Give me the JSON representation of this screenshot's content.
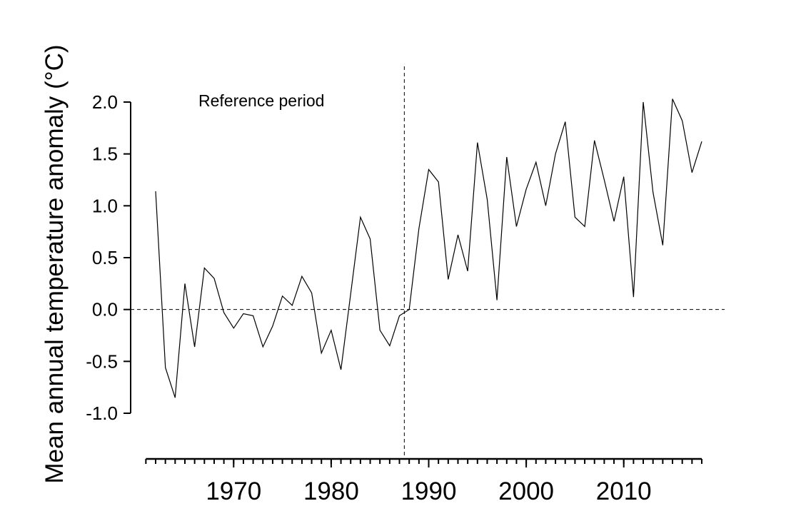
{
  "chart_data": {
    "type": "line",
    "ylabel": "Mean annual temperature anomaly (°C)",
    "xlabel": "",
    "annotation": "Reference period",
    "reference_split_year": 1987.5,
    "ylim": [
      -1.0,
      2.0
    ],
    "yticks": [
      -1.0,
      -0.5,
      0.0,
      0.5,
      1.0,
      1.5,
      2.0
    ],
    "ytick_labels": [
      "-1.0",
      "-0.5",
      "0.0",
      "0.5",
      "1.0",
      "1.5",
      "2.0"
    ],
    "xlim": [
      1961,
      2018
    ],
    "xticks_labeled": [
      1970,
      1980,
      1990,
      2000,
      2010
    ],
    "xtick_labels": [
      "1970",
      "1980",
      "1990",
      "2000",
      "2010"
    ],
    "zero_line": true,
    "series": [
      {
        "name": "Mean annual temperature anomaly",
        "x": [
          1962,
          1963,
          1964,
          1965,
          1966,
          1967,
          1968,
          1969,
          1970,
          1971,
          1972,
          1973,
          1974,
          1975,
          1976,
          1977,
          1978,
          1979,
          1980,
          1981,
          1982,
          1983,
          1984,
          1985,
          1986,
          1987,
          1988,
          1989,
          1990,
          1991,
          1992,
          1993,
          1994,
          1995,
          1996,
          1997,
          1998,
          1999,
          2000,
          2001,
          2002,
          2003,
          2004,
          2005,
          2006,
          2007,
          2008,
          2009,
          2010,
          2011,
          2012,
          2013,
          2014,
          2015,
          2016,
          2017,
          2018
        ],
        "values": [
          1.14,
          -0.56,
          -0.85,
          0.25,
          -0.36,
          0.4,
          0.3,
          -0.03,
          -0.18,
          -0.04,
          -0.06,
          -0.36,
          -0.16,
          0.13,
          0.04,
          0.32,
          0.16,
          -0.42,
          -0.2,
          -0.58,
          0.15,
          0.89,
          0.68,
          -0.2,
          -0.35,
          -0.06,
          0.0,
          0.78,
          1.35,
          1.23,
          0.29,
          0.72,
          0.37,
          1.61,
          1.06,
          0.09,
          1.47,
          0.8,
          1.16,
          1.42,
          1.0,
          1.5,
          1.81,
          0.89,
          0.8,
          1.63,
          1.25,
          0.85,
          1.28,
          0.12,
          2.0,
          1.13,
          0.62,
          2.03,
          1.82,
          1.32,
          1.62
        ]
      }
    ]
  }
}
